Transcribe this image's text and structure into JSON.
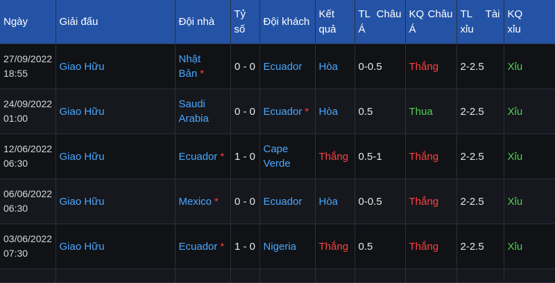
{
  "headers": {
    "date": "Ngày",
    "league": "Giải đấu",
    "home": "Đội nhà",
    "score": [
      "Tỷ",
      "số"
    ],
    "away": "Đội khách",
    "result": [
      "Kết",
      "quả"
    ],
    "asian_line": [
      "TL",
      "Châu",
      "Á"
    ],
    "asian_result": [
      "KQ",
      "Châu",
      "Á"
    ],
    "ou_line": [
      "TL",
      "Tài",
      "xỉu"
    ],
    "ou_result": [
      "KQ",
      "xỉu"
    ]
  },
  "rows": [
    {
      "date": "27/09/2022",
      "time": "18:55",
      "league": "Giao Hữu",
      "home": "Nhật Bản",
      "home_star": "*",
      "score": "0 - 0",
      "away": "Ecuador",
      "away_star": "",
      "result": "Hòa",
      "result_type": "draw",
      "asian_line": "0-0.5",
      "asian_result": "Thắng",
      "asian_type": "win",
      "ou_line": "2-2.5",
      "ou_result": "Xỉu"
    },
    {
      "date": "24/09/2022",
      "time": "01:00",
      "league": "Giao Hữu",
      "home": "Saudi Arabia",
      "home_star": "",
      "score": "0 - 0",
      "away": "Ecuador",
      "away_star": "*",
      "result": "Hòa",
      "result_type": "draw",
      "asian_line": "0.5",
      "asian_result": "Thua",
      "asian_type": "lose",
      "ou_line": "2-2.5",
      "ou_result": "Xỉu"
    },
    {
      "date": "12/06/2022",
      "time": "06:30",
      "league": "Giao Hữu",
      "home": "Ecuador",
      "home_star": "*",
      "score": "1 - 0",
      "away": "Cape Verde",
      "away_star": "",
      "result": "Thắng",
      "result_type": "win",
      "asian_line": "0.5-1",
      "asian_result": "Thắng",
      "asian_type": "win",
      "ou_line": "2-2.5",
      "ou_result": "Xỉu"
    },
    {
      "date": "06/06/2022",
      "time": "06:30",
      "league": "Giao Hữu",
      "home": "Mexico",
      "home_star": "*",
      "score": "0 - 0",
      "away": "Ecuador",
      "away_star": "",
      "result": "Hòa",
      "result_type": "draw",
      "asian_line": "0-0.5",
      "asian_result": "Thắng",
      "asian_type": "win",
      "ou_line": "2-2.5",
      "ou_result": "Xỉu"
    },
    {
      "date": "03/06/2022",
      "time": "07:30",
      "league": "Giao Hữu",
      "home": "Ecuador",
      "home_star": "*",
      "score": "1 - 0",
      "away": "Nigeria",
      "away_star": "",
      "result": "Thắng",
      "result_type": "win",
      "asian_line": "0.5",
      "asian_result": "Thắng",
      "asian_type": "win",
      "ou_line": "2-2.5",
      "ou_result": "Xỉu"
    }
  ],
  "colors": {
    "header_bg": "#2453a6",
    "win": "#ff4040",
    "draw": "#4aa8ff",
    "lose": "#4fd34f"
  }
}
